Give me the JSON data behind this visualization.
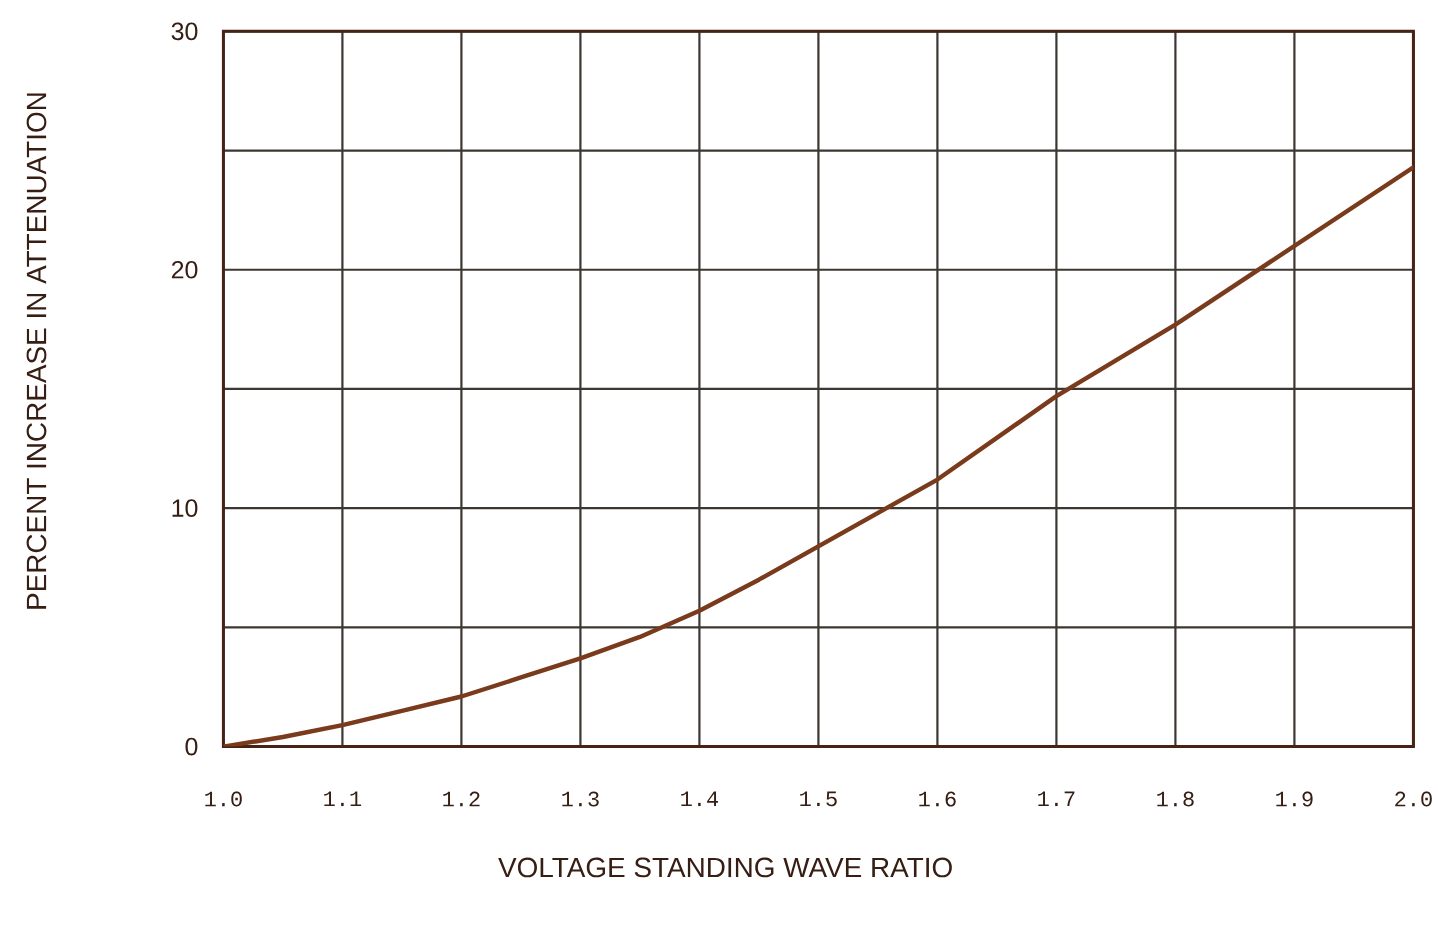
{
  "chart_data": {
    "type": "line",
    "xlabel": "VOLTAGE STANDING WAVE RATIO",
    "ylabel": "PERCENT INCREASE IN ATTENUATION",
    "x": [
      1.0,
      1.05,
      1.1,
      1.15,
      1.2,
      1.25,
      1.3,
      1.35,
      1.4,
      1.45,
      1.5,
      1.6,
      1.7,
      1.8,
      1.9,
      2.0
    ],
    "values": [
      0,
      0.4,
      0.9,
      1.5,
      2.1,
      2.9,
      3.7,
      4.6,
      5.7,
      7.0,
      8.4,
      11.2,
      14.7,
      17.7,
      21.0,
      24.3
    ],
    "color": "#7a3a1c",
    "line_style": "solid",
    "xlim": [
      1.0,
      2.0
    ],
    "ylim": [
      0,
      30
    ],
    "xticks": [
      {
        "value": 1.0,
        "label": "1.0"
      },
      1.1,
      1.2,
      1.3,
      1.4,
      1.5,
      1.6,
      1.7,
      1.8,
      1.9,
      {
        "value": 2.0,
        "label": "2.0"
      }
    ],
    "yticks": [
      0,
      {
        "value": 5,
        "label": null
      },
      10,
      {
        "value": 15,
        "label": null
      },
      20,
      {
        "value": 25,
        "label": null
      },
      30
    ],
    "grid": true
  }
}
